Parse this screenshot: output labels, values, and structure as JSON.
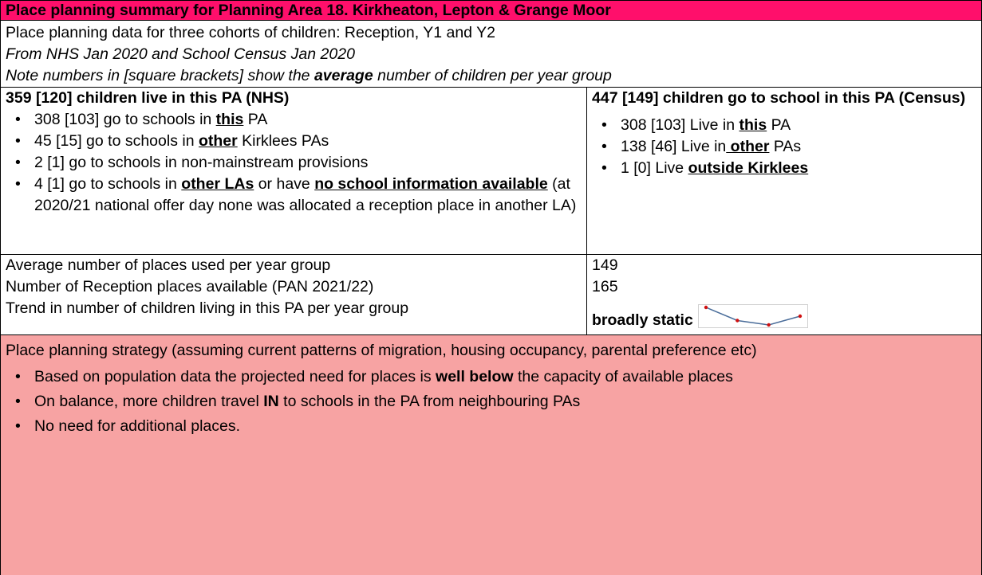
{
  "title": "Place planning summary for Planning Area 18.  Kirkheaton, Lepton & Grange Moor",
  "intro": [
    "Place planning data for three cohorts of children: Reception, Y1 and Y2",
    "From NHS Jan 2020 and School Census Jan 2020",
    [
      "Note numbers in [square brackets] show the ",
      "average",
      " number of children per year group"
    ]
  ],
  "left": {
    "heading": "359 [120] children live in this PA (NHS)",
    "bullets": [
      [
        "308 [103] go to schools in ",
        "this",
        " PA"
      ],
      [
        "45 [15] go to schools in ",
        "other",
        " Kirklees PAs"
      ],
      [
        "2 [1] go to schools in non-mainstream provisions"
      ],
      [
        "4 [1] go to schools in ",
        "other LAs",
        " or have ",
        "no school information available",
        " (at 2020/21 national offer day none was allocated a reception place in another LA)"
      ]
    ]
  },
  "right": {
    "heading": "447 [149] children go to school in this PA (Census)",
    "bullets": [
      [
        "308 [103] Live in ",
        "this",
        " PA"
      ],
      [
        "138 [46] Live in",
        " other",
        " PAs"
      ],
      [
        "1 [0] Live ",
        "outside Kirklees"
      ]
    ]
  },
  "stats": [
    {
      "label": "Average number of places used per year group",
      "value": "149"
    },
    {
      "label": "Number of Reception places available (PAN 2021/22)",
      "value": "165"
    },
    {
      "label": "Trend in number of children living in this PA per year group",
      "value": "broadly static"
    }
  ],
  "sparkline": {
    "values": [
      127,
      118,
      115,
      121
    ],
    "line_color": "#4a6d9a",
    "marker_color": "#d01010"
  },
  "strategy": {
    "heading": "Place planning strategy (assuming current patterns of migration, housing occupancy, parental preference etc)",
    "bullets": [
      [
        "Based on population data the projected need for places is ",
        "well below",
        " the capacity of available places"
      ],
      [
        "On balance, more children travel ",
        "IN",
        " to schools in the PA from neighbouring PAs"
      ],
      [
        "No need for additional places."
      ]
    ]
  }
}
